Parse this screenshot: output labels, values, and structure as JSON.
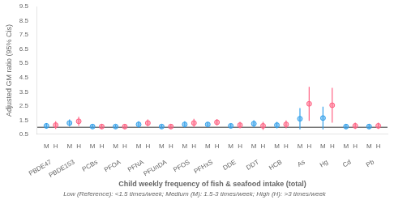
{
  "chart_data": {
    "type": "scatter",
    "xlabel": "Child weekly frequency of fish & seafood intake (total)",
    "ylabel": "Adjusted GM ratio (95% Cis)",
    "caption": "Low (Reference): <1.5 times/week; Medium (M): 1.5-3 times/week; High (H): >3 times/week",
    "categories": [
      "PBDE47",
      "PBDE153",
      "PCBs",
      "PFOA",
      "PFNA",
      "PFUnDA",
      "PFOS",
      "PFHxS",
      "DDE",
      "DDT",
      "HCB",
      "As",
      "Hg",
      "Cd",
      "Pb"
    ],
    "series": [
      {
        "name": "M",
        "values": [
          1.1,
          1.3,
          1.05,
          1.05,
          1.2,
          1.05,
          1.2,
          1.2,
          1.1,
          1.25,
          1.15,
          1.6,
          1.65,
          1.05,
          1.05
        ],
        "ci_low": [
          0.9,
          1.05,
          0.92,
          0.92,
          0.98,
          0.92,
          0.98,
          1.05,
          0.95,
          1.0,
          0.92,
          0.85,
          0.85,
          0.88,
          0.88
        ],
        "ci_high": [
          1.3,
          1.55,
          1.18,
          1.18,
          1.42,
          1.18,
          1.42,
          1.35,
          1.25,
          1.5,
          1.38,
          2.35,
          2.45,
          1.22,
          1.22
        ]
      },
      {
        "name": "H",
        "values": [
          1.15,
          1.42,
          1.05,
          1.05,
          1.3,
          1.05,
          1.3,
          1.35,
          1.15,
          1.1,
          1.2,
          2.65,
          2.55,
          1.1,
          1.1
        ],
        "ci_low": [
          0.88,
          1.1,
          0.88,
          0.88,
          1.05,
          0.88,
          1.0,
          1.12,
          0.92,
          0.82,
          0.92,
          1.45,
          1.32,
          0.88,
          0.88
        ],
        "ci_high": [
          1.42,
          1.74,
          1.22,
          1.22,
          1.55,
          1.22,
          1.6,
          1.58,
          1.38,
          1.38,
          1.48,
          3.85,
          3.78,
          1.32,
          1.32
        ]
      }
    ],
    "reference_line": 1.0,
    "ylim": [
      0.5,
      9.5
    ],
    "yticks": [
      0.5,
      1.5,
      2.5,
      3.5,
      4.5,
      5.5,
      6.5,
      7.5,
      8.5,
      9.5
    ],
    "grid": false
  }
}
